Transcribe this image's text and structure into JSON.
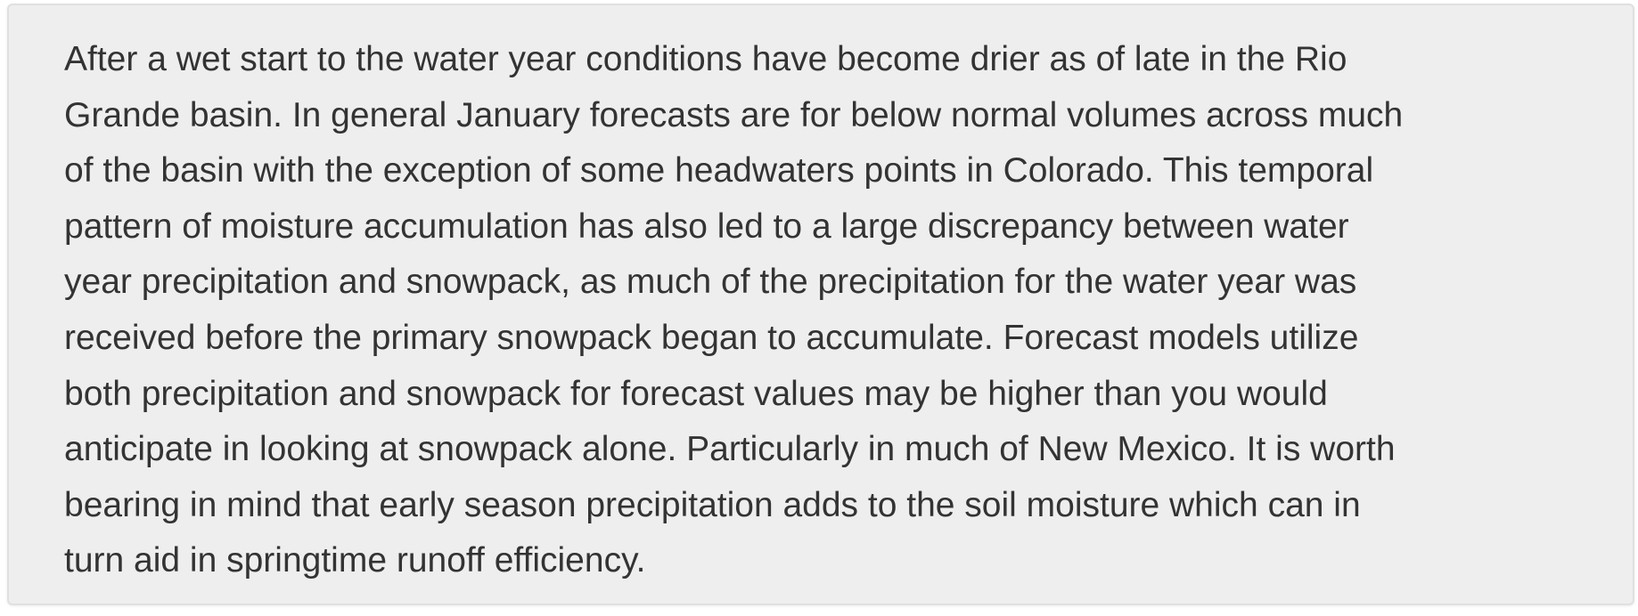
{
  "summary": {
    "lines": [
      "After a wet start to the water year conditions have become drier as of late in the Rio",
      "Grande basin. In general January forecasts are for below normal volumes across much",
      "of the basin with the exception of some headwaters points in Colorado. This temporal",
      "pattern of moisture accumulation has also led to a large discrepancy between water",
      "year precipitation and snowpack, as much of the precipitation for the water year was",
      "received before the primary snowpack began to accumulate. Forecast models utilize",
      "both precipitation and snowpack for forecast values may be higher than you would",
      "anticipate in looking at snowpack alone. Particularly in much of New Mexico. It is worth",
      "bearing in mind that early season precipitation adds to the soil moisture which can in",
      "turn aid in springtime runoff efficiency."
    ]
  },
  "colors": {
    "panel_background": "#eeeeee",
    "panel_border": "#e0e0e0",
    "text": "#333333"
  }
}
